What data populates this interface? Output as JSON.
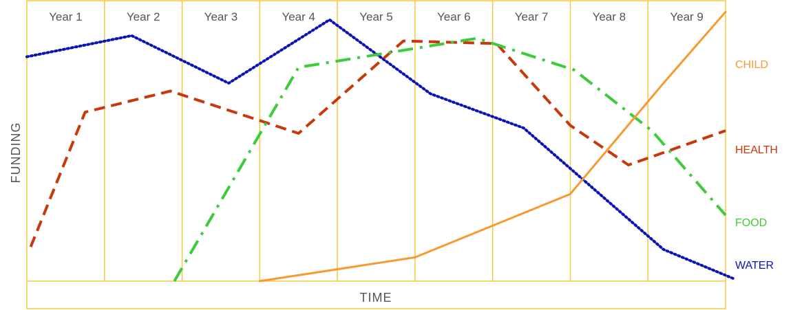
{
  "chart_data": {
    "type": "line",
    "title": "",
    "xlabel": "TIME",
    "ylabel": "FUNDING",
    "categories": [
      "Year 1",
      "Year 2",
      "Year 3",
      "Year 4",
      "Year 5",
      "Year 6",
      "Year 7",
      "Year 8",
      "Year 9"
    ],
    "xlim": [
      0,
      9
    ],
    "ylim": [
      0,
      100
    ],
    "grid": "vertical",
    "frame_color": "#F5C842",
    "series": [
      {
        "name": "WATER",
        "color": "#0A14B4",
        "dash": "dotted",
        "x": [
          0,
          1.35,
          2.6,
          3.9,
          5.2,
          6.4,
          8.2,
          9.1
        ],
        "y": [
          85,
          93,
          75,
          99,
          71,
          58,
          12,
          1
        ]
      },
      {
        "name": "HEALTH",
        "color": "#C8380A",
        "dash": "dashed",
        "x": [
          0.05,
          0.75,
          1.85,
          3.5,
          4.85,
          6.05,
          7,
          7.75,
          9
        ],
        "y": [
          13,
          64,
          72,
          56,
          91,
          90,
          59,
          44,
          57
        ]
      },
      {
        "name": "FOOD",
        "color": "#3CCB3A",
        "dash": "dash-dot",
        "x": [
          1.9,
          3.5,
          5.8,
          7.05,
          8.05,
          9
        ],
        "y": [
          0,
          81,
          92,
          80,
          57,
          25
        ]
      },
      {
        "name": "CHILD",
        "color": "#F79A32",
        "dash": "solid",
        "x": [
          3,
          5,
          7,
          8.2,
          9
        ],
        "y": [
          0,
          9,
          33,
          75,
          102
        ]
      }
    ]
  }
}
